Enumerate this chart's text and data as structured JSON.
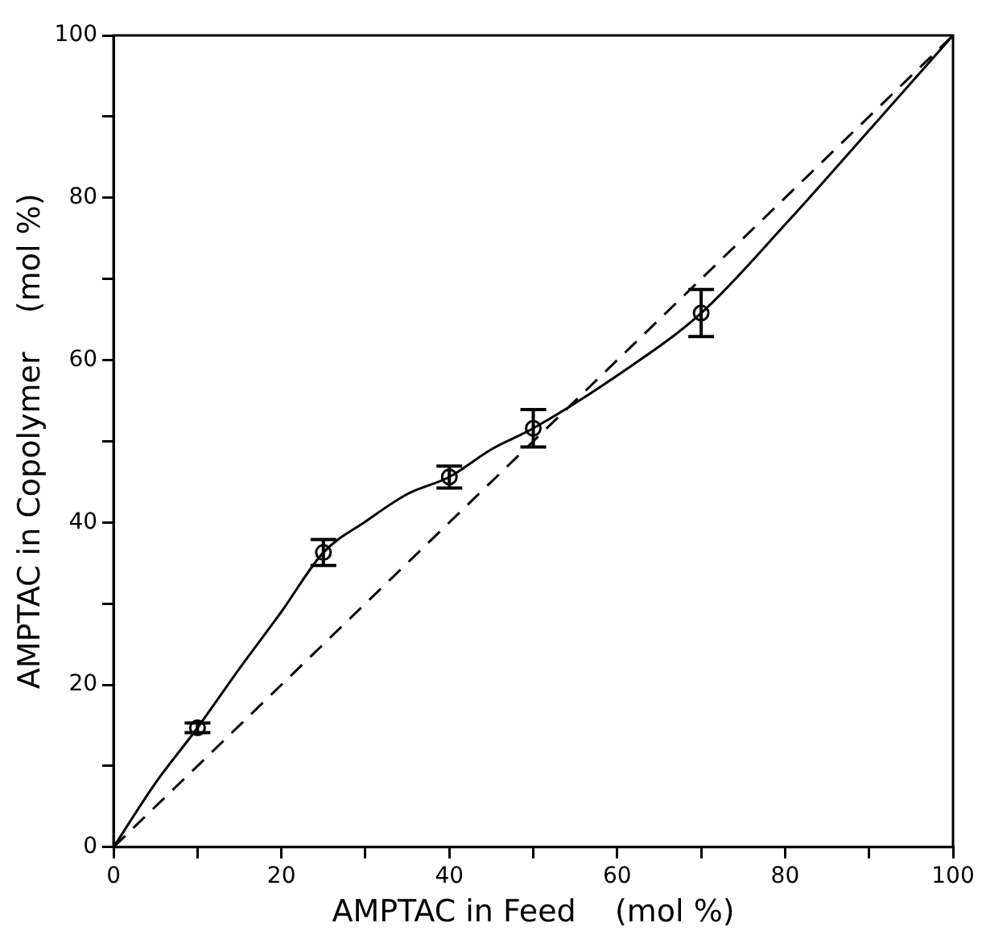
{
  "chart_data": {
    "type": "scatter",
    "xlabel": "AMPTAC in Feed    (mol %)",
    "ylabel": "AMPTAC in Copolymer    (mol %)",
    "xlim": [
      0,
      100
    ],
    "ylim": [
      0,
      100
    ],
    "xticks": [
      0,
      {
        "value": 10,
        "label": null
      },
      20,
      {
        "value": 30,
        "label": null
      },
      40,
      {
        "value": 50,
        "label": null
      },
      60,
      {
        "value": 70,
        "label": null
      },
      80,
      {
        "value": 90,
        "label": null
      },
      100
    ],
    "yticks": [
      0,
      {
        "value": 10,
        "label": null
      },
      20,
      {
        "value": 30,
        "label": null
      },
      40,
      {
        "value": 50,
        "label": null
      },
      60,
      {
        "value": 70,
        "label": null
      },
      80,
      {
        "value": 90,
        "label": null
      },
      100
    ],
    "grid": false,
    "legend": false,
    "series": [
      {
        "type": "scatter",
        "color": "#000000",
        "marker": "circle",
        "x": [
          10,
          25,
          40,
          50,
          70
        ],
        "values": [
          14.7,
          36.3,
          45.6,
          51.6,
          65.8
        ],
        "errors": [
          0.6,
          1.6,
          1.35,
          2.3,
          2.9
        ]
      },
      {
        "type": "line",
        "color": "#000000",
        "marker": "none",
        "line_style": "solid",
        "x": [
          0,
          5,
          10,
          15,
          20,
          25,
          30,
          35,
          40,
          45,
          50,
          60,
          70,
          80,
          90,
          100
        ],
        "values": [
          0,
          7.9,
          14.7,
          22,
          29,
          36.3,
          40.1,
          43.5,
          45.6,
          49,
          51.6,
          58.1,
          65.8,
          76.7,
          88.3,
          100
        ]
      },
      {
        "type": "line",
        "color": "#000000",
        "marker": "none",
        "line_style": "dashed",
        "x": [
          0,
          100
        ],
        "values": [
          0,
          100
        ]
      }
    ]
  }
}
